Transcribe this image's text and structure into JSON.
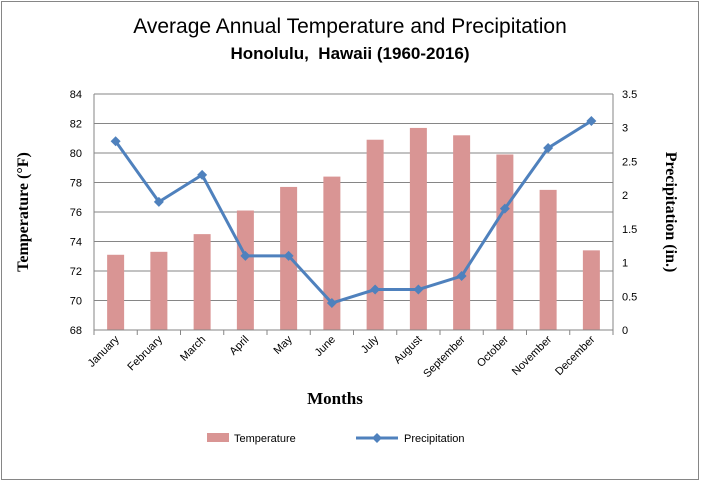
{
  "chart_data": {
    "type": "bar+line",
    "title": "Average Annual Temperature and Precipitation",
    "subtitle": "Honolulu,  Hawaii (1960-2016)",
    "xlabel": "Months",
    "ylabel": "Temperature (°F)",
    "y2label": "Precipitation (in.)",
    "categories": [
      "January",
      "February",
      "March",
      "April",
      "May",
      "June",
      "July",
      "August",
      "September",
      "October",
      "November",
      "December"
    ],
    "series": [
      {
        "name": "Temperature",
        "type": "bar",
        "axis": "left",
        "color": "#d99594",
        "values": [
          73.1,
          73.3,
          74.5,
          76.1,
          77.7,
          78.4,
          80.9,
          81.7,
          81.2,
          79.9,
          77.5,
          73.4
        ]
      },
      {
        "name": "Precipitation",
        "type": "line",
        "axis": "right",
        "color": "#4f81bd",
        "marker": "diamond",
        "values": [
          2.8,
          1.9,
          2.3,
          1.1,
          1.1,
          0.4,
          0.6,
          0.6,
          0.8,
          1.8,
          2.7,
          3.1
        ]
      }
    ],
    "ylim": [
      68,
      84
    ],
    "yticks": [
      "68",
      "70",
      "72",
      "74",
      "76",
      "78",
      "80",
      "82",
      "84"
    ],
    "y2lim": [
      0,
      3.5
    ],
    "y2ticks": [
      "0",
      "0.5",
      "1",
      "1.5",
      "2",
      "2.5",
      "3",
      "3.5"
    ],
    "grid": true,
    "legend": "bottom"
  }
}
